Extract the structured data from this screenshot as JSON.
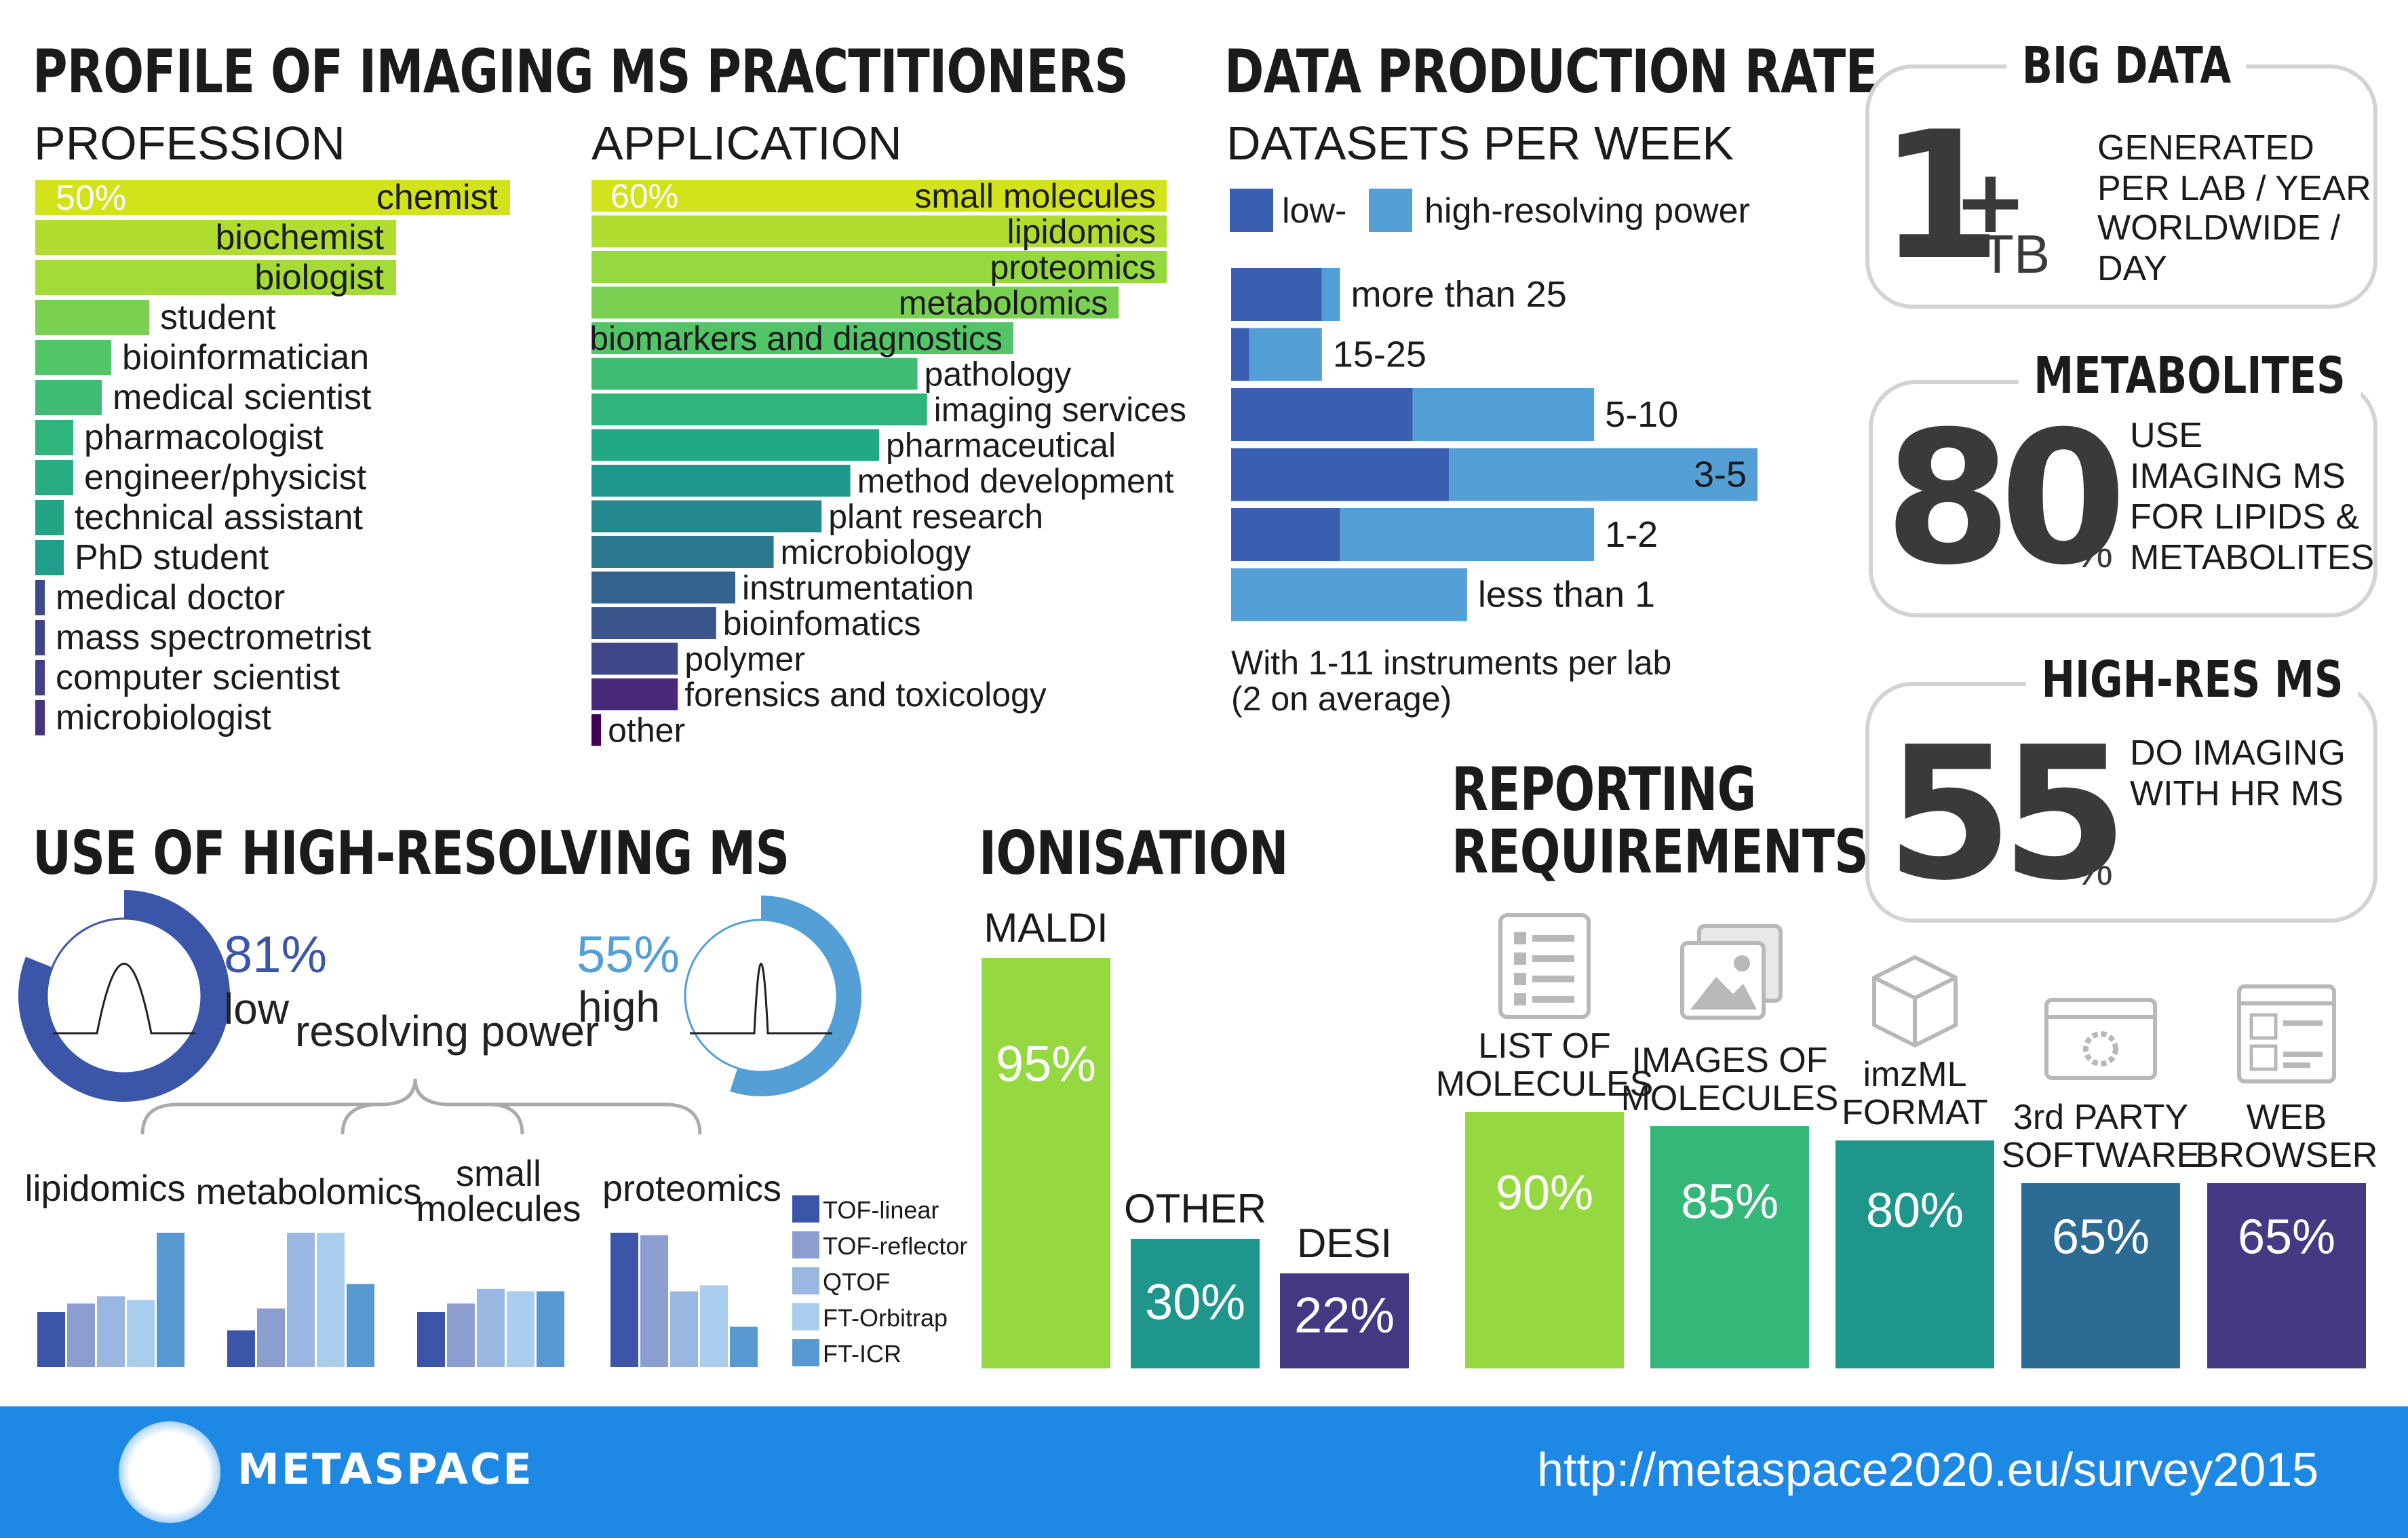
{
  "header": {
    "title": "PROFILE OF IMAGING MS PRACTITIONERS",
    "profession_title": "PROFESSION",
    "application_title": "APPLICATION",
    "data_rate_title": "DATA PRODUCTION RATE",
    "datasets_title": "DATASETS PER WEEK"
  },
  "sections": {
    "hrms_title": "USE OF HIGH-RESOLVING MS",
    "ionisation_title": "IONISATION",
    "reporting_title_1": "REPORTING",
    "reporting_title_2": "REQUIREMENTS"
  },
  "cards": {
    "bigdata": {
      "title": "BIG DATA",
      "number": "1",
      "plus": "+",
      "unit": "TB",
      "line1": "GENERATED",
      "line2": "PER LAB / YEAR",
      "line3": "WORLDWIDE / DAY"
    },
    "metabolites": {
      "title": "METABOLITES",
      "number": "80",
      "unit": "%",
      "line1": "USE",
      "line2": "IMAGING MS",
      "line3": "FOR LIPIDS &",
      "line4": "METABOLITES"
    },
    "hires": {
      "title": "HIGH-RES MS",
      "number": "55",
      "unit": "%",
      "line1": "DO IMAGING",
      "line2": "WITH HR MS"
    }
  },
  "rate_note": {
    "line1": "With 1-11 instruments per lab",
    "line2": "(2 on average)"
  },
  "hrms": {
    "low_pct": "81%",
    "low_label": "low",
    "low_value": 0.81,
    "high_pct": "55%",
    "high_label": "high",
    "high_value": 0.55,
    "middle_label": "resolving power"
  },
  "footer": {
    "brand": "METASPACE",
    "url": "http://metaspace2020.eu/survey2015"
  },
  "chart_data": [
    {
      "type": "bar",
      "id": "profession",
      "title": "PROFESSION",
      "orientation": "horizontal",
      "first_label": "50%",
      "categories": [
        "chemist",
        "biochemist",
        "biologist",
        "student",
        "bioinformatician",
        "medical scientist",
        "pharmacologist",
        "engineer/physicist",
        "technical assistant",
        "PhD student",
        "medical doctor",
        "mass spectrometrist",
        "computer scientist",
        "microbiologist"
      ],
      "values": [
        50,
        38,
        38,
        12,
        8,
        7,
        4,
        4,
        3,
        3,
        1,
        1,
        1,
        1
      ],
      "colors": [
        "#d2e21b",
        "#b0dd2f",
        "#a5db36",
        "#7ad151",
        "#52c569",
        "#3fbc73",
        "#2fb47c",
        "#27ad81",
        "#21a585",
        "#1f9e89",
        "#3e4989",
        "#404387",
        "#423f85",
        "#46337e"
      ]
    },
    {
      "type": "bar",
      "id": "application",
      "title": "APPLICATION",
      "orientation": "horizontal",
      "first_label": "60%",
      "categories": [
        "small molecules",
        "lipidomics",
        "proteomics",
        "metabolomics",
        "biomarkers and diagnostics",
        "pathology",
        "imaging services",
        "pharmaceutical",
        "method development",
        "plant research",
        "microbiology",
        "instrumentation",
        "bioinfomatics",
        "polymer",
        "forensics and toxicology",
        "other"
      ],
      "values": [
        60,
        60,
        60,
        55,
        44,
        34,
        35,
        30,
        27,
        24,
        19,
        15,
        13,
        9,
        9,
        1
      ],
      "colors": [
        "#d2e21b",
        "#b0dd2f",
        "#95d840",
        "#7ad151",
        "#52c569",
        "#3fbc73",
        "#2fb47c",
        "#22a884",
        "#1f968b",
        "#23898e",
        "#2a788e",
        "#33638d",
        "#39558c",
        "#3f4788",
        "#482878",
        "#440154"
      ]
    },
    {
      "type": "bar",
      "id": "datasets_per_week",
      "title": "DATASETS PER WEEK",
      "orientation": "horizontal",
      "stacked": true,
      "categories": [
        "more than 25",
        "15-25",
        "5-10",
        "3-5",
        "1-2",
        "less than 1"
      ],
      "series": [
        {
          "name": "low-",
          "values": [
            5,
            1,
            10,
            12,
            6,
            0
          ],
          "color": "#3a5fb0"
        },
        {
          "name": "high-resolving power",
          "values": [
            1,
            4,
            10,
            17,
            14,
            13
          ],
          "color": "#549fd6"
        }
      ]
    },
    {
      "type": "bar",
      "id": "hrms_use",
      "orientation": "vertical",
      "categories": [
        "lipidomics",
        "metabolomics",
        "small molecules",
        "proteomics"
      ],
      "series": [
        {
          "name": "TOF-linear",
          "values": [
            45,
            30,
            45,
            110
          ],
          "color": "#3b55a8"
        },
        {
          "name": "TOF-reflector",
          "values": [
            52,
            48,
            52,
            108
          ],
          "color": "#8c9ed0"
        },
        {
          "name": "QTOF",
          "values": [
            58,
            110,
            64,
            62
          ],
          "color": "#9ab7e2"
        },
        {
          "name": "FT-Orbitrap",
          "values": [
            55,
            110,
            62,
            67
          ],
          "color": "#a9cdec"
        },
        {
          "name": "FT-ICR",
          "values": [
            110,
            68,
            62,
            33
          ],
          "color": "#5899d2"
        }
      ]
    },
    {
      "type": "bar",
      "id": "ionisation",
      "title": "IONISATION",
      "orientation": "vertical",
      "categories": [
        "MALDI",
        "OTHER",
        "DESI"
      ],
      "values": [
        95,
        30,
        22
      ],
      "value_labels": [
        "95%",
        "30%",
        "22%"
      ],
      "colors": [
        "#95d840",
        "#1f968b",
        "#453882"
      ]
    },
    {
      "type": "bar",
      "id": "reporting",
      "orientation": "vertical",
      "categories": [
        "LIST OF MOLECULES",
        "IMAGES OF MOLECULES",
        "imzML FORMAT",
        "3rd PARTY SOFTWARE",
        "WEB BROWSER"
      ],
      "label_lines": [
        [
          "LIST OF",
          "MOLECULES"
        ],
        [
          "IMAGES OF",
          "MOLECULES"
        ],
        [
          "imzML",
          "FORMAT"
        ],
        [
          "3rd PARTY",
          "SOFTWARE"
        ],
        [
          "WEB",
          "BROWSER"
        ]
      ],
      "icons": [
        "list-icon",
        "images-icon",
        "cube-icon",
        "software-icon",
        "browser-icon"
      ],
      "values": [
        90,
        85,
        80,
        65,
        65
      ],
      "value_labels": [
        "90%",
        "85%",
        "80%",
        "65%",
        "65%"
      ],
      "colors": [
        "#95d840",
        "#35b779",
        "#1f968b",
        "#2c6b93",
        "#443983"
      ]
    }
  ]
}
